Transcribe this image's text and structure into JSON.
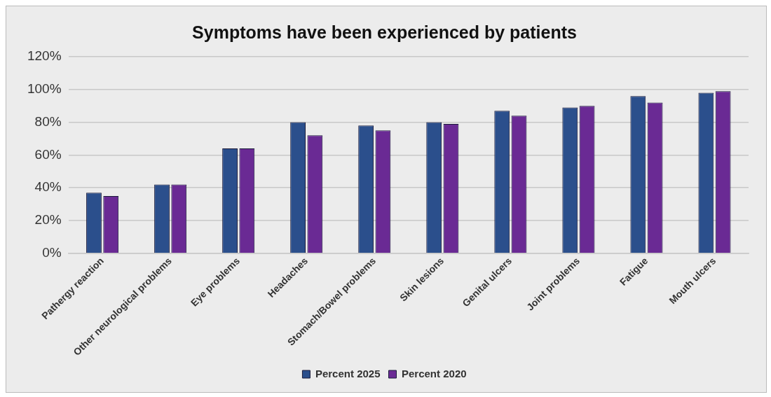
{
  "chart_data": {
    "type": "bar",
    "title": "Symptoms have been experienced by patients",
    "categories": [
      "Pathergy reaction",
      "Other neurological problems",
      "Eye problems",
      "Headaches",
      "Stomach/Bowel problems",
      "Skin lesions",
      "Genital ulcers",
      "Joint problems",
      "Fatigue",
      "Mouth ulcers"
    ],
    "series": [
      {
        "name": "Percent 2025",
        "color": "#2b4f8c",
        "values": [
          37,
          42,
          64,
          80,
          78,
          80,
          87,
          89,
          96,
          98
        ]
      },
      {
        "name": "Percent 2020",
        "color": "#6a2a94",
        "values": [
          35,
          42,
          64,
          72,
          75,
          79,
          84,
          90,
          92,
          99
        ]
      }
    ],
    "ylim": [
      0,
      120
    ],
    "yticks": [
      {
        "value": 0,
        "label": "0%"
      },
      {
        "value": 20,
        "label": "20%"
      },
      {
        "value": 40,
        "label": "40%"
      },
      {
        "value": 60,
        "label": "60%"
      },
      {
        "value": 80,
        "label": "80%"
      },
      {
        "value": 100,
        "label": "100%"
      },
      {
        "value": 120,
        "label": "120%"
      }
    ],
    "grid": "y",
    "legend": "bottom"
  }
}
